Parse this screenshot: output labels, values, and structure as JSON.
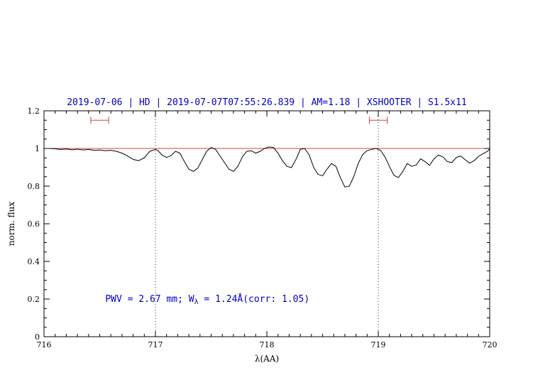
{
  "title": "2019-07-06 | HD | 2019-07-07T07:55:26.839 | AM=1.18 | XSHOOTER | S1.5x11",
  "colors": {
    "accent_blue": "#0000cc",
    "model_red": "#cc4444",
    "spectrum_black": "#000000",
    "dotted_line": "#333333"
  },
  "chart_data": {
    "type": "line",
    "title": "2019-07-06 | HD | 2019-07-07T07:55:26.839 | AM=1.18 | XSHOOTER | S1.5x11",
    "xlabel": "λ(AA)",
    "ylabel": "norm. flux",
    "xlim": [
      716,
      720
    ],
    "ylim": [
      0,
      1.2
    ],
    "xticks": [
      716,
      717,
      718,
      719,
      720
    ],
    "yticks": [
      0,
      0.2,
      0.4,
      0.6,
      0.8,
      1,
      1.2
    ],
    "x_minor_step": 0.1,
    "y_minor_step": 0.05,
    "grid": false,
    "legend": "none",
    "vlines_dotted": [
      717,
      719
    ],
    "reference_line_y": 1.0,
    "range_markers": [
      {
        "x1": 716.42,
        "x2": 716.58,
        "y": 1.15
      },
      {
        "x1": 718.92,
        "x2": 719.08,
        "y": 1.15
      }
    ],
    "annotation": {
      "prefix": "PWV = 2.67 mm; W",
      "sub": "λ",
      "suffix": " = 1.24Å(corr: 1.05)",
      "x": 716.55,
      "y": 0.2
    },
    "series": [
      {
        "name": "spectrum",
        "color": "#000000",
        "points": [
          [
            716.0,
            1.0
          ],
          [
            716.05,
            1.0
          ],
          [
            716.1,
            0.998
          ],
          [
            716.15,
            0.995
          ],
          [
            716.2,
            0.997
          ],
          [
            716.25,
            0.993
          ],
          [
            716.3,
            0.996
          ],
          [
            716.35,
            0.992
          ],
          [
            716.4,
            0.995
          ],
          [
            716.45,
            0.99
          ],
          [
            716.5,
            0.992
          ],
          [
            716.55,
            0.988
          ],
          [
            716.6,
            0.99
          ],
          [
            716.65,
            0.985
          ],
          [
            716.7,
            0.975
          ],
          [
            716.75,
            0.96
          ],
          [
            716.8,
            0.942
          ],
          [
            716.85,
            0.935
          ],
          [
            716.9,
            0.95
          ],
          [
            716.95,
            0.985
          ],
          [
            717.0,
            0.995
          ],
          [
            717.02,
            0.99
          ],
          [
            717.06,
            0.965
          ],
          [
            717.1,
            0.952
          ],
          [
            717.14,
            0.962
          ],
          [
            717.18,
            0.985
          ],
          [
            717.22,
            0.975
          ],
          [
            717.26,
            0.93
          ],
          [
            717.3,
            0.89
          ],
          [
            717.34,
            0.878
          ],
          [
            717.38,
            0.895
          ],
          [
            717.42,
            0.94
          ],
          [
            717.46,
            0.985
          ],
          [
            717.5,
            1.005
          ],
          [
            717.54,
            0.995
          ],
          [
            717.58,
            0.96
          ],
          [
            717.62,
            0.925
          ],
          [
            717.66,
            0.89
          ],
          [
            717.7,
            0.878
          ],
          [
            717.74,
            0.905
          ],
          [
            717.78,
            0.955
          ],
          [
            717.82,
            0.985
          ],
          [
            717.86,
            0.988
          ],
          [
            717.9,
            0.975
          ],
          [
            717.94,
            0.985
          ],
          [
            717.98,
            1.0
          ],
          [
            718.02,
            1.008
          ],
          [
            718.06,
            1.005
          ],
          [
            718.1,
            0.975
          ],
          [
            718.14,
            0.935
          ],
          [
            718.18,
            0.905
          ],
          [
            718.22,
            0.898
          ],
          [
            718.26,
            0.94
          ],
          [
            718.3,
            0.995
          ],
          [
            718.34,
            1.0
          ],
          [
            718.38,
            0.965
          ],
          [
            718.42,
            0.9
          ],
          [
            718.46,
            0.862
          ],
          [
            718.5,
            0.855
          ],
          [
            718.54,
            0.89
          ],
          [
            718.58,
            0.92
          ],
          [
            718.62,
            0.905
          ],
          [
            718.66,
            0.845
          ],
          [
            718.7,
            0.795
          ],
          [
            718.74,
            0.8
          ],
          [
            718.78,
            0.85
          ],
          [
            718.82,
            0.92
          ],
          [
            718.86,
            0.968
          ],
          [
            718.9,
            0.988
          ],
          [
            718.94,
            0.995
          ],
          [
            718.98,
            1.0
          ],
          [
            719.02,
            0.99
          ],
          [
            719.06,
            0.955
          ],
          [
            719.1,
            0.905
          ],
          [
            719.14,
            0.858
          ],
          [
            719.18,
            0.845
          ],
          [
            719.22,
            0.878
          ],
          [
            719.26,
            0.92
          ],
          [
            719.3,
            0.905
          ],
          [
            719.34,
            0.912
          ],
          [
            719.38,
            0.945
          ],
          [
            719.42,
            0.93
          ],
          [
            719.46,
            0.91
          ],
          [
            719.5,
            0.945
          ],
          [
            719.54,
            0.965
          ],
          [
            719.58,
            0.955
          ],
          [
            719.62,
            0.93
          ],
          [
            719.66,
            0.925
          ],
          [
            719.7,
            0.952
          ],
          [
            719.74,
            0.96
          ],
          [
            719.78,
            0.94
          ],
          [
            719.82,
            0.922
          ],
          [
            719.86,
            0.935
          ],
          [
            719.9,
            0.958
          ],
          [
            719.94,
            0.972
          ],
          [
            719.98,
            0.985
          ],
          [
            720.0,
            0.998
          ]
        ]
      }
    ]
  }
}
